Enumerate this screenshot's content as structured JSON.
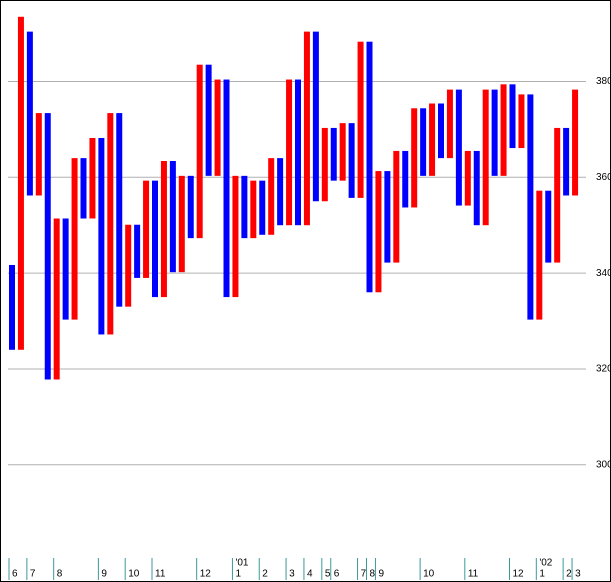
{
  "chart_data": {
    "type": "range-bar",
    "colors": [
      "#0000ff",
      "#ff0000"
    ],
    "ylim": [
      277,
      397
    ],
    "yticks": [
      300,
      320,
      340,
      360,
      380
    ],
    "grid": true,
    "categories": [
      "6",
      null,
      "7",
      null,
      null,
      "8",
      null,
      null,
      null,
      null,
      "9",
      null,
      null,
      "10",
      null,
      null,
      "11",
      null,
      null,
      null,
      null,
      "12",
      null,
      null,
      null,
      "1",
      null,
      null,
      "2",
      null,
      null,
      "3",
      null,
      "4",
      null,
      "5",
      "6",
      null,
      null,
      "7",
      "8",
      "9",
      null,
      null,
      null,
      null,
      "10",
      null,
      null,
      null,
      null,
      "11",
      null,
      null,
      null,
      null,
      "12",
      null,
      null,
      "1",
      null,
      null,
      "2",
      "3"
    ],
    "year_labels": [
      null,
      null,
      null,
      null,
      null,
      null,
      null,
      null,
      null,
      null,
      null,
      null,
      null,
      null,
      null,
      null,
      null,
      null,
      null,
      null,
      null,
      null,
      null,
      null,
      null,
      "'01",
      null,
      null,
      null,
      null,
      null,
      null,
      null,
      null,
      null,
      null,
      null,
      null,
      null,
      null,
      null,
      null,
      null,
      null,
      null,
      null,
      null,
      null,
      null,
      null,
      null,
      null,
      null,
      null,
      null,
      null,
      null,
      null,
      null,
      "'02",
      null,
      null,
      null,
      null
    ],
    "values": [
      [
        341.7,
        324
      ],
      [
        393.5,
        324
      ],
      [
        390.4,
        356.2
      ],
      [
        373.4,
        356.2
      ],
      [
        373.4,
        317.8
      ],
      [
        351.4,
        317.8
      ],
      [
        351.4,
        330.3
      ],
      [
        364,
        330.3
      ],
      [
        364,
        351.4
      ],
      [
        368.2,
        351.4
      ],
      [
        368.2,
        327.2
      ],
      [
        373.4,
        327.2
      ],
      [
        373.4,
        333
      ],
      [
        350.1,
        333
      ],
      [
        350.1,
        339
      ],
      [
        359.3,
        339
      ],
      [
        359.3,
        335
      ],
      [
        363.4,
        335
      ],
      [
        363.4,
        340.2
      ],
      [
        360.3,
        340.2
      ],
      [
        360.3,
        347.3
      ],
      [
        383.5,
        347.3
      ],
      [
        383.5,
        360.3
      ],
      [
        380.4,
        360.3
      ],
      [
        380.4,
        335
      ],
      [
        360.3,
        335
      ],
      [
        360.3,
        347.3
      ],
      [
        359.3,
        347.3
      ],
      [
        359.3,
        348
      ],
      [
        364,
        348
      ],
      [
        364,
        350
      ],
      [
        380.4,
        350
      ],
      [
        380.4,
        350
      ],
      [
        390.4,
        350
      ],
      [
        390.4,
        355
      ],
      [
        370.3,
        355
      ],
      [
        370.3,
        359.3
      ],
      [
        371.3,
        359.3
      ],
      [
        371.3,
        355.7
      ],
      [
        388.3,
        355.7
      ],
      [
        388.3,
        336
      ],
      [
        361.3,
        336
      ],
      [
        361.3,
        342.2
      ],
      [
        365.5,
        342.2
      ],
      [
        365.5,
        353.7
      ],
      [
        374.4,
        353.7
      ],
      [
        374.4,
        360.3
      ],
      [
        375.4,
        360.3
      ],
      [
        375.4,
        364
      ],
      [
        378.3,
        364
      ],
      [
        378.3,
        354.1
      ],
      [
        365.5,
        354.1
      ],
      [
        365.5,
        350
      ],
      [
        378.3,
        350
      ],
      [
        378.3,
        360.3
      ],
      [
        379.4,
        360.3
      ],
      [
        379.4,
        366.1
      ],
      [
        377.3,
        366.1
      ],
      [
        377.3,
        330.3
      ],
      [
        357.2,
        330.3
      ],
      [
        357.2,
        342.2
      ],
      [
        370.3,
        342.2
      ],
      [
        370.3,
        356.2
      ],
      [
        378.3,
        356.2
      ]
    ]
  }
}
